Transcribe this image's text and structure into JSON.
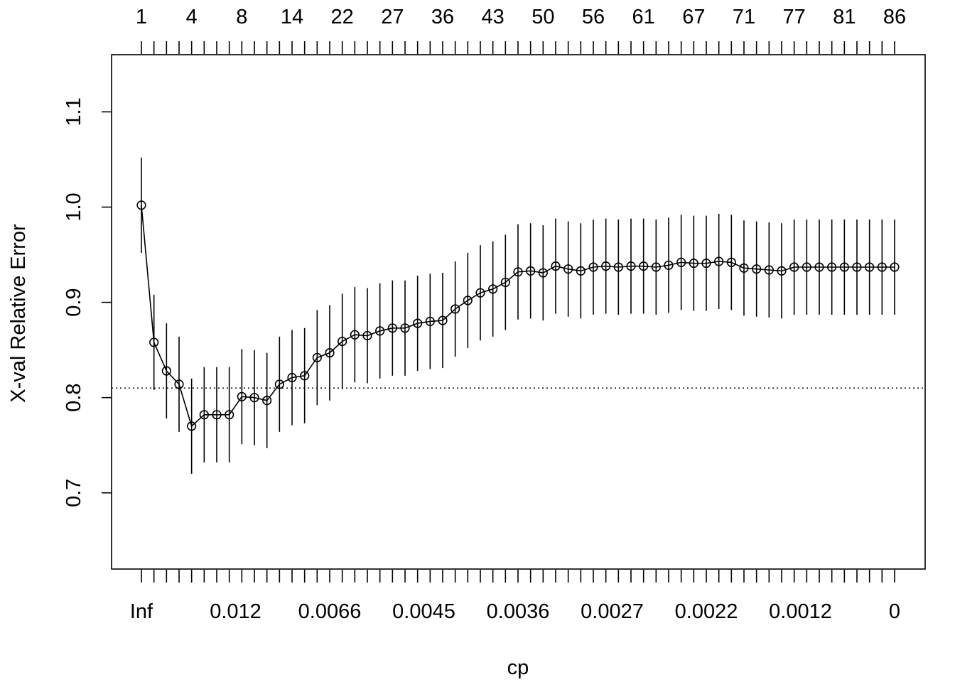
{
  "chart_data": {
    "type": "scatter",
    "xlabel": "cp",
    "ylabel": "X-val Relative Error",
    "ylim": [
      0.62,
      1.16
    ],
    "y_ticks": [
      "0.7",
      "0.8",
      "0.9",
      "1.0",
      "1.1"
    ],
    "bottom_tick_labels": [
      "Inf",
      "0.012",
      "0.0066",
      "0.0045",
      "0.0036",
      "0.0027",
      "0.0022",
      "0.0012",
      "0"
    ],
    "top_tick_labels": [
      "1",
      "4",
      "8",
      "14",
      "22",
      "27",
      "36",
      "43",
      "50",
      "56",
      "61",
      "67",
      "71",
      "77",
      "81",
      "86"
    ],
    "reference_line": 0.81,
    "grid": false,
    "legend": "none",
    "error_half_width": 0.05,
    "values": [
      1.002,
      0.858,
      0.828,
      0.814,
      0.77,
      0.782,
      0.782,
      0.782,
      0.801,
      0.8,
      0.797,
      0.814,
      0.821,
      0.823,
      0.842,
      0.847,
      0.859,
      0.866,
      0.865,
      0.87,
      0.873,
      0.873,
      0.878,
      0.88,
      0.881,
      0.893,
      0.902,
      0.91,
      0.914,
      0.921,
      0.932,
      0.933,
      0.931,
      0.938,
      0.935,
      0.933,
      0.937,
      0.938,
      0.937,
      0.938,
      0.938,
      0.937,
      0.939,
      0.942,
      0.941,
      0.941,
      0.943,
      0.942,
      0.936,
      0.935,
      0.934,
      0.933,
      0.937,
      0.937,
      0.937,
      0.937,
      0.937,
      0.937,
      0.937,
      0.937,
      0.937
    ]
  }
}
